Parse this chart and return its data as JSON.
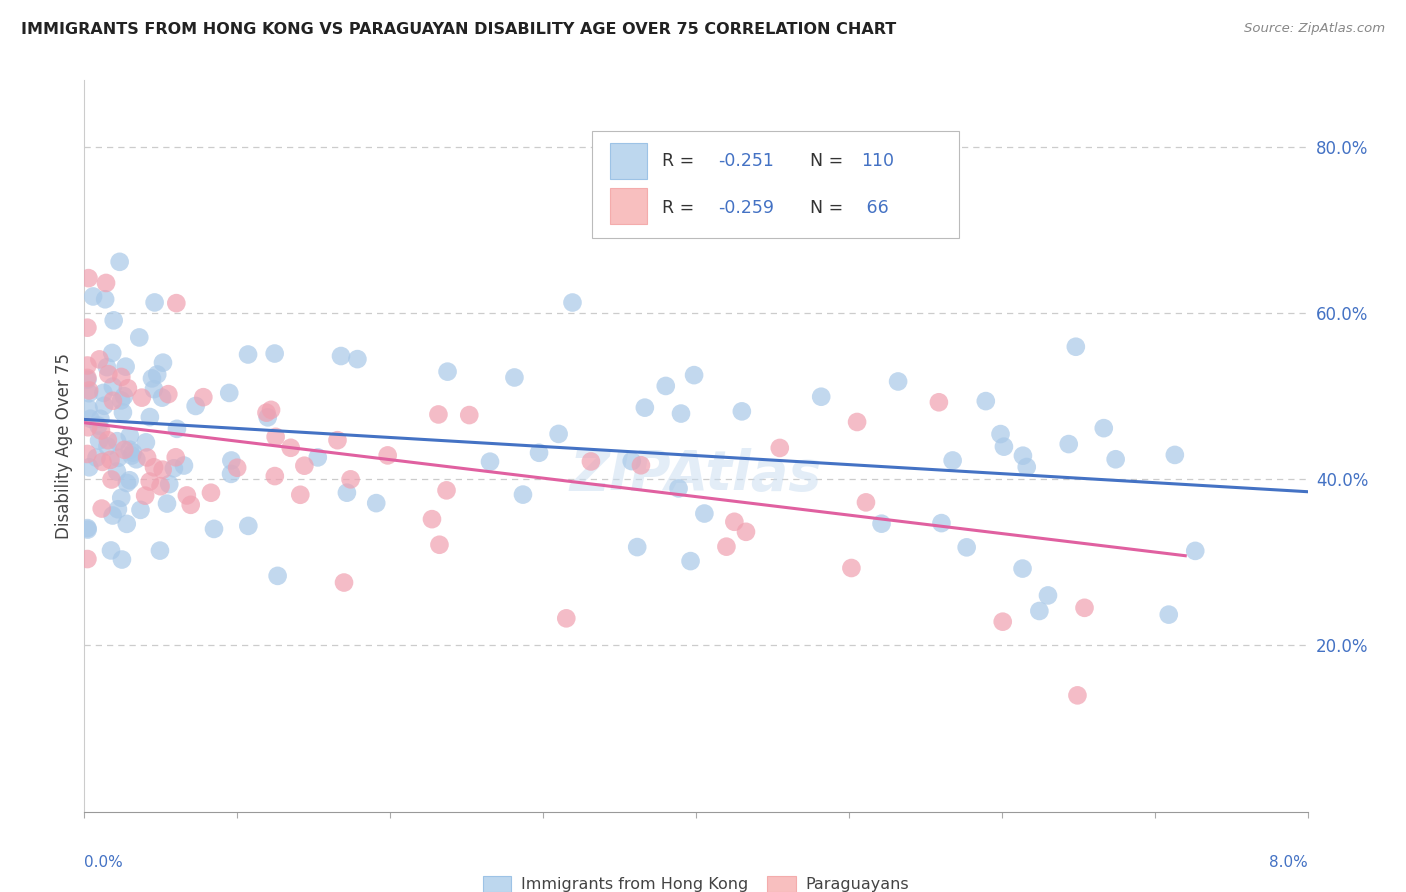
{
  "title": "IMMIGRANTS FROM HONG KONG VS PARAGUAYAN DISABILITY AGE OVER 75 CORRELATION CHART",
  "source": "Source: ZipAtlas.com",
  "ylabel": "Disability Age Over 75",
  "right_yticks": [
    "80.0%",
    "60.0%",
    "40.0%",
    "20.0%"
  ],
  "right_ytick_vals": [
    0.8,
    0.6,
    0.4,
    0.2
  ],
  "xmin": 0.0,
  "xmax": 0.08,
  "ymin": 0.0,
  "ymax": 0.88,
  "color_blue": "#A8C8E8",
  "color_pink": "#F0A0B0",
  "trendline_blue": "#4472C4",
  "trendline_pink": "#E060A0",
  "legend_box_blue": "#BDD7EE",
  "legend_box_pink": "#F8BFBF",
  "legend_text_color": "#4472C4",
  "watermark_color": "#C8DCF0",
  "blue_trend_x0": 0.0,
  "blue_trend_x1": 0.08,
  "blue_trend_y0": 0.472,
  "blue_trend_y1": 0.385,
  "pink_trend_x0": 0.0,
  "pink_trend_x1": 0.072,
  "pink_trend_y0": 0.468,
  "pink_trend_y1": 0.308
}
